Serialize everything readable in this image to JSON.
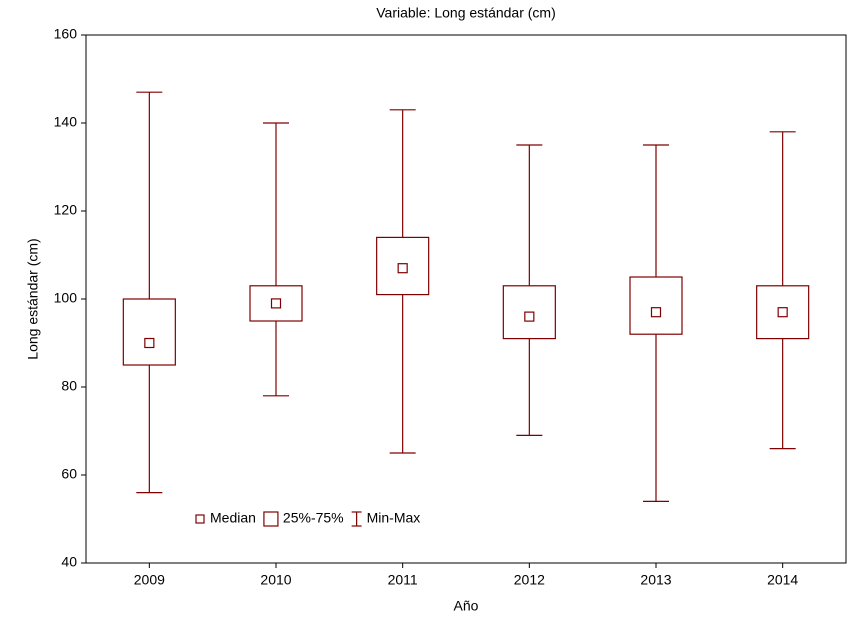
{
  "chart_data": {
    "type": "box",
    "title": "Variable: Long estándar (cm)",
    "x_label": "Año",
    "y_label": "Long estándar (cm)",
    "categories": [
      "2009",
      "2010",
      "2011",
      "2012",
      "2013",
      "2014"
    ],
    "color": "#7f0000",
    "median": {
      "name": "Median",
      "values": [
        90,
        99,
        107,
        96,
        97,
        97
      ]
    },
    "box": {
      "name": "25%-75%",
      "q1": [
        85,
        95,
        101,
        91,
        92,
        91
      ],
      "q3": [
        100,
        103,
        114,
        103,
        105,
        103
      ]
    },
    "whisker": {
      "name": "Min-Max",
      "min": [
        56,
        78,
        65,
        69,
        54,
        66
      ],
      "max": [
        147,
        140,
        143,
        135,
        135,
        138
      ]
    },
    "ylim": [
      40,
      160
    ],
    "yticks": [
      40,
      60,
      80,
      100,
      120,
      140,
      160
    ],
    "legend": "lower left"
  }
}
